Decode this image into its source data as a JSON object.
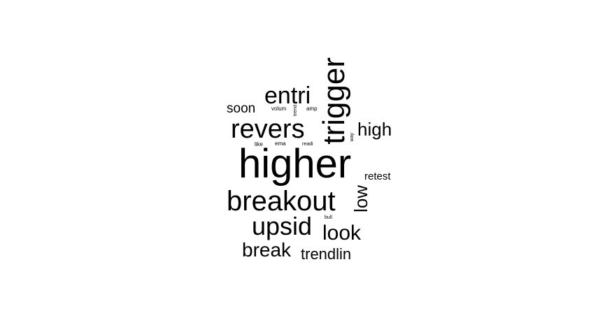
{
  "word_cloud": {
    "text_color": "#000000",
    "background_color": "#ffffff",
    "words": [
      "higher",
      "breakout",
      "revers",
      "trigger",
      "upsid",
      "entri",
      "break",
      "look",
      "low",
      "high",
      "trendlin",
      "soon",
      "retest",
      "volum",
      "amp",
      "trend",
      "like",
      "ema",
      "readi",
      "way",
      "bull"
    ]
  }
}
